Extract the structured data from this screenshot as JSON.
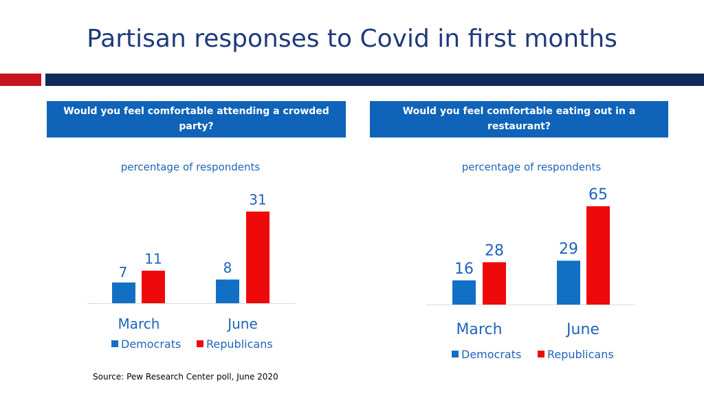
{
  "title": "Partisan responses to Covid in first months",
  "colors": {
    "democrats": "#1170c4",
    "republicans": "#ee0a0a",
    "question_bg": "#0f63b8",
    "accent_red": "#c8141e",
    "accent_navy": "#0f2a5a",
    "title": "#1f3a7a",
    "label": "#1f63b8"
  },
  "source": "Source: Pew Research Center poll, June 2020",
  "chart_data": [
    {
      "type": "bar",
      "title": "Would you feel comfortable attending a crowded party?",
      "subtitle": "percentage of respondents",
      "categories": [
        "March",
        "June"
      ],
      "series": [
        {
          "name": "Democrats",
          "values": [
            7,
            8
          ]
        },
        {
          "name": "Republicans",
          "values": [
            11,
            31
          ]
        }
      ],
      "legend": "bottom",
      "grid": false
    },
    {
      "type": "bar",
      "title": "Would you feel comfortable eating out in a restaurant?",
      "subtitle": "percentage of respondents",
      "categories": [
        "March",
        "June"
      ],
      "series": [
        {
          "name": "Democrats",
          "values": [
            16,
            29
          ]
        },
        {
          "name": "Republicans",
          "values": [
            28,
            65
          ]
        }
      ],
      "legend": "bottom",
      "grid": false
    }
  ]
}
